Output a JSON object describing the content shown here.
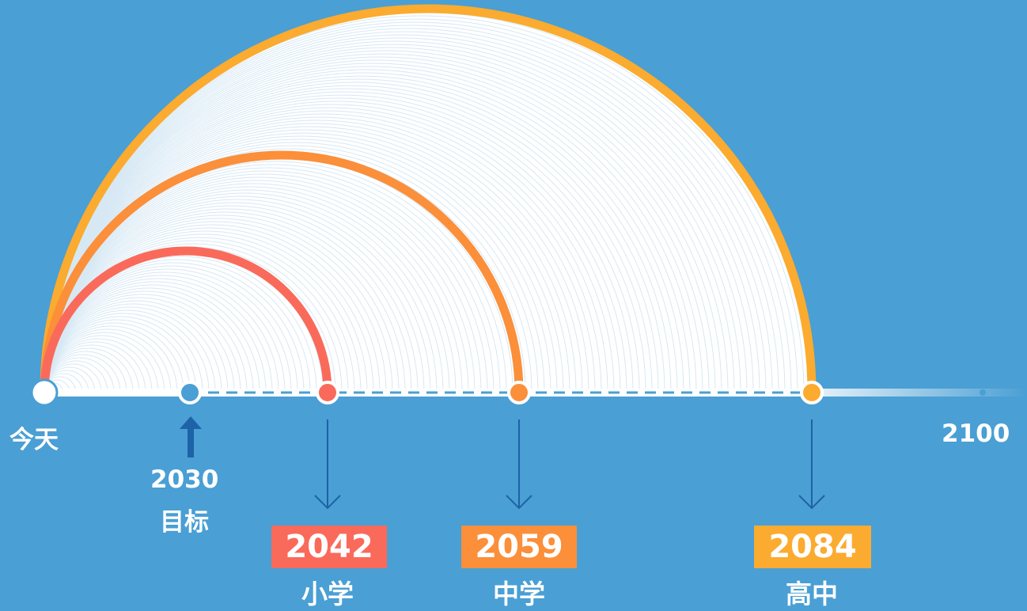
{
  "colors": {
    "background": "#4a9fd4",
    "primary": "#fa6a5b",
    "middle": "#fb8f3a",
    "high": "#fbab2f",
    "timeline": "#ffffff",
    "dashes": "#4a9fd4",
    "arrows": "#1e62a8",
    "fan_lines": "#d6e8f4"
  },
  "timeline": {
    "start_label": "今天",
    "end_label": "2100"
  },
  "goal": {
    "year": "2030",
    "caption": "目标"
  },
  "milestones": [
    {
      "year": "2042",
      "stage": "小学",
      "color": "#fa6a5b"
    },
    {
      "year": "2059",
      "stage": "中学",
      "color": "#fb8f3a"
    },
    {
      "year": "2084",
      "stage": "高中",
      "color": "#fbab2f"
    }
  ]
}
